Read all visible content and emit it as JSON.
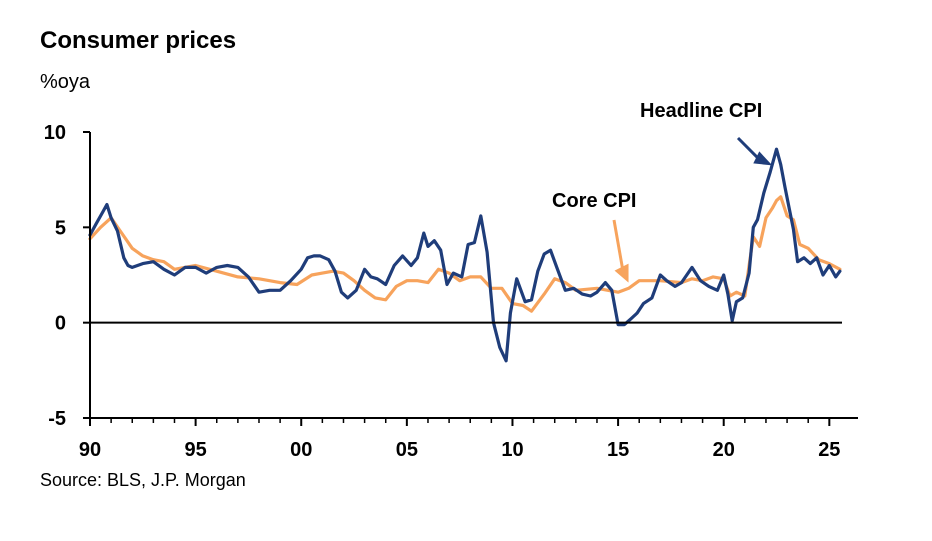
{
  "chart_data": {
    "type": "line",
    "title": "Consumer prices",
    "ylabel": "%oya",
    "source": "Source: BLS, J.P. Morgan",
    "xlim": [
      1990,
      2025.6
    ],
    "ylim": [
      -5,
      10
    ],
    "x_ticks": [
      1990,
      1995,
      2000,
      2005,
      2010,
      2015,
      2020,
      2025
    ],
    "x_tick_labels": [
      "90",
      "95",
      "00",
      "05",
      "10",
      "15",
      "20",
      "25"
    ],
    "y_ticks": [
      -5,
      0,
      5,
      10
    ],
    "y_tick_labels": [
      "-5",
      "0",
      "5",
      "10"
    ],
    "grid": false,
    "series": [
      {
        "name": "Headline CPI",
        "color": "#1f3d7a",
        "x": [
          1990.0,
          1990.3,
          1990.6,
          1990.8,
          1991.0,
          1991.3,
          1991.6,
          1991.8,
          1992.0,
          1992.5,
          1993.0,
          1993.5,
          1994.0,
          1994.5,
          1995.0,
          1995.5,
          1996.0,
          1996.5,
          1997.0,
          1997.5,
          1998.0,
          1998.5,
          1999.0,
          1999.5,
          2000.0,
          2000.3,
          2000.6,
          2000.9,
          2001.3,
          2001.6,
          2001.9,
          2002.2,
          2002.6,
          2003.0,
          2003.3,
          2003.6,
          2004.0,
          2004.4,
          2004.8,
          2005.2,
          2005.5,
          2005.8,
          2006.0,
          2006.3,
          2006.6,
          2006.9,
          2007.2,
          2007.6,
          2007.9,
          2008.2,
          2008.5,
          2008.8,
          2009.1,
          2009.4,
          2009.7,
          2009.9,
          2010.2,
          2010.6,
          2010.9,
          2011.2,
          2011.5,
          2011.8,
          2012.1,
          2012.5,
          2012.9,
          2013.3,
          2013.7,
          2014.0,
          2014.4,
          2014.7,
          2015.0,
          2015.3,
          2015.6,
          2015.9,
          2016.2,
          2016.6,
          2017.0,
          2017.3,
          2017.7,
          2018.0,
          2018.5,
          2018.9,
          2019.3,
          2019.7,
          2020.0,
          2020.2,
          2020.4,
          2020.6,
          2020.9,
          2021.2,
          2021.4,
          2021.6,
          2021.9,
          2022.2,
          2022.5,
          2022.7,
          2022.9,
          2023.1,
          2023.3,
          2023.5,
          2023.8,
          2024.1,
          2024.4,
          2024.7,
          2025.0,
          2025.3,
          2025.5
        ],
        "values": [
          4.6,
          5.2,
          5.8,
          6.2,
          5.5,
          4.8,
          3.4,
          3.0,
          2.9,
          3.1,
          3.2,
          2.8,
          2.5,
          2.9,
          2.9,
          2.6,
          2.9,
          3.0,
          2.9,
          2.4,
          1.6,
          1.7,
          1.7,
          2.2,
          2.8,
          3.4,
          3.5,
          3.5,
          3.3,
          2.7,
          1.6,
          1.3,
          1.7,
          2.8,
          2.4,
          2.3,
          2.0,
          3.0,
          3.5,
          3.0,
          3.4,
          4.7,
          4.0,
          4.3,
          3.8,
          2.0,
          2.6,
          2.4,
          4.1,
          4.2,
          5.6,
          3.7,
          0.0,
          -1.3,
          -2.0,
          0.5,
          2.3,
          1.1,
          1.2,
          2.7,
          3.6,
          3.8,
          2.9,
          1.7,
          1.8,
          1.5,
          1.4,
          1.6,
          2.1,
          1.7,
          -0.1,
          -0.1,
          0.2,
          0.5,
          1.0,
          1.3,
          2.5,
          2.2,
          1.9,
          2.1,
          2.9,
          2.2,
          1.9,
          1.7,
          2.5,
          1.5,
          0.1,
          1.1,
          1.3,
          2.6,
          5.0,
          5.4,
          6.8,
          7.9,
          9.1,
          8.3,
          7.1,
          6.0,
          4.9,
          3.2,
          3.4,
          3.1,
          3.4,
          2.5,
          3.0,
          2.4,
          2.7
        ]
      },
      {
        "name": "Core CPI",
        "color": "#f7a35c",
        "x": [
          1990.0,
          1990.5,
          1991.0,
          1991.5,
          1992.0,
          1992.5,
          1993.0,
          1993.5,
          1994.0,
          1995.0,
          1996.0,
          1997.0,
          1998.0,
          1999.0,
          1999.8,
          2000.5,
          2001.0,
          2001.5,
          2002.0,
          2002.5,
          2003.0,
          2003.5,
          2004.0,
          2004.5,
          2005.0,
          2005.5,
          2006.0,
          2006.5,
          2007.0,
          2007.5,
          2008.0,
          2008.5,
          2009.0,
          2009.5,
          2010.0,
          2010.5,
          2010.9,
          2011.5,
          2012.0,
          2012.5,
          2013.0,
          2014.0,
          2015.0,
          2015.5,
          2016.0,
          2016.5,
          2017.0,
          2018.0,
          2018.5,
          2019.0,
          2019.5,
          2020.0,
          2020.3,
          2020.6,
          2021.0,
          2021.2,
          2021.4,
          2021.7,
          2022.0,
          2022.3,
          2022.5,
          2022.7,
          2023.0,
          2023.3,
          2023.6,
          2024.0,
          2024.5,
          2025.0,
          2025.5
        ],
        "values": [
          4.4,
          5.0,
          5.5,
          4.7,
          3.9,
          3.5,
          3.3,
          3.2,
          2.8,
          3.0,
          2.7,
          2.4,
          2.3,
          2.1,
          2.0,
          2.5,
          2.6,
          2.7,
          2.6,
          2.2,
          1.7,
          1.3,
          1.2,
          1.9,
          2.2,
          2.2,
          2.1,
          2.8,
          2.6,
          2.2,
          2.4,
          2.4,
          1.8,
          1.8,
          1.0,
          0.9,
          0.6,
          1.5,
          2.3,
          2.1,
          1.7,
          1.8,
          1.6,
          1.8,
          2.2,
          2.2,
          2.2,
          2.1,
          2.3,
          2.2,
          2.4,
          2.3,
          1.4,
          1.6,
          1.4,
          3.0,
          4.5,
          4.0,
          5.5,
          6.0,
          6.4,
          6.6,
          5.6,
          5.4,
          4.1,
          3.9,
          3.3,
          3.1,
          2.8
        ]
      }
    ],
    "annotations": [
      {
        "text": "Headline CPI",
        "series": "Headline CPI"
      },
      {
        "text": "Core CPI",
        "series": "Core CPI"
      }
    ]
  }
}
